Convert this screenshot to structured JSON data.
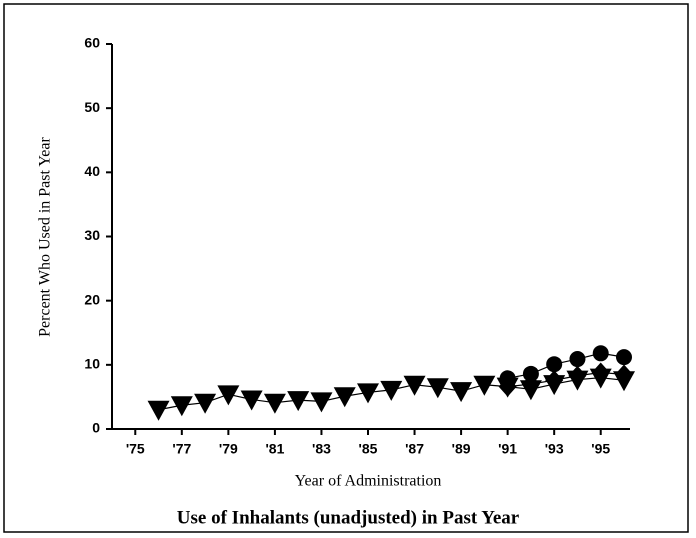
{
  "chart_data": {
    "type": "line",
    "title": "Use of Inhalants (unadjusted) in Past Year",
    "x_label": "Year of Administration",
    "y_label": "Percent Who Used in Past Year",
    "xlim": [
      1974,
      1996
    ],
    "xticks": [
      {
        "value": 1975,
        "label": "'75"
      },
      {
        "value": 1977,
        "label": "'77"
      },
      {
        "value": 1979,
        "label": "'79"
      },
      {
        "value": 1981,
        "label": "'81"
      },
      {
        "value": 1983,
        "label": "'83"
      },
      {
        "value": 1985,
        "label": "'85"
      },
      {
        "value": 1987,
        "label": "'87"
      },
      {
        "value": 1989,
        "label": "'89"
      },
      {
        "value": 1991,
        "label": "'91"
      },
      {
        "value": 1993,
        "label": "'93"
      },
      {
        "value": 1995,
        "label": "'95"
      }
    ],
    "ylim": [
      0,
      60
    ],
    "yticks": [
      0,
      10,
      20,
      30,
      40,
      50,
      60
    ],
    "series": [
      {
        "marker": "triangle-down",
        "color": "#000000",
        "x": [
          1976,
          1977,
          1978,
          1979,
          1980,
          1981,
          1982,
          1983,
          1984,
          1985,
          1986,
          1987,
          1988,
          1989,
          1990,
          1991,
          1992,
          1993,
          1994,
          1995,
          1996
        ],
        "values": [
          3.0,
          3.7,
          4.1,
          5.4,
          4.6,
          4.1,
          4.5,
          4.3,
          5.1,
          5.7,
          6.1,
          6.9,
          6.5,
          5.9,
          6.9,
          6.6,
          6.2,
          7.0,
          7.7,
          8.0,
          7.6
        ]
      },
      {
        "marker": "circle",
        "color": "#000000",
        "x": [
          1991,
          1992,
          1993,
          1994,
          1995,
          1996
        ],
        "values": [
          7.9,
          8.6,
          10.1,
          10.9,
          11.8,
          11.2
        ]
      },
      {
        "marker": "diamond",
        "color": "#000000",
        "x": [
          1991,
          1992,
          1993,
          1994,
          1995,
          1996
        ],
        "values": [
          6.6,
          7.0,
          7.6,
          8.3,
          8.8,
          8.5
        ]
      }
    ]
  }
}
